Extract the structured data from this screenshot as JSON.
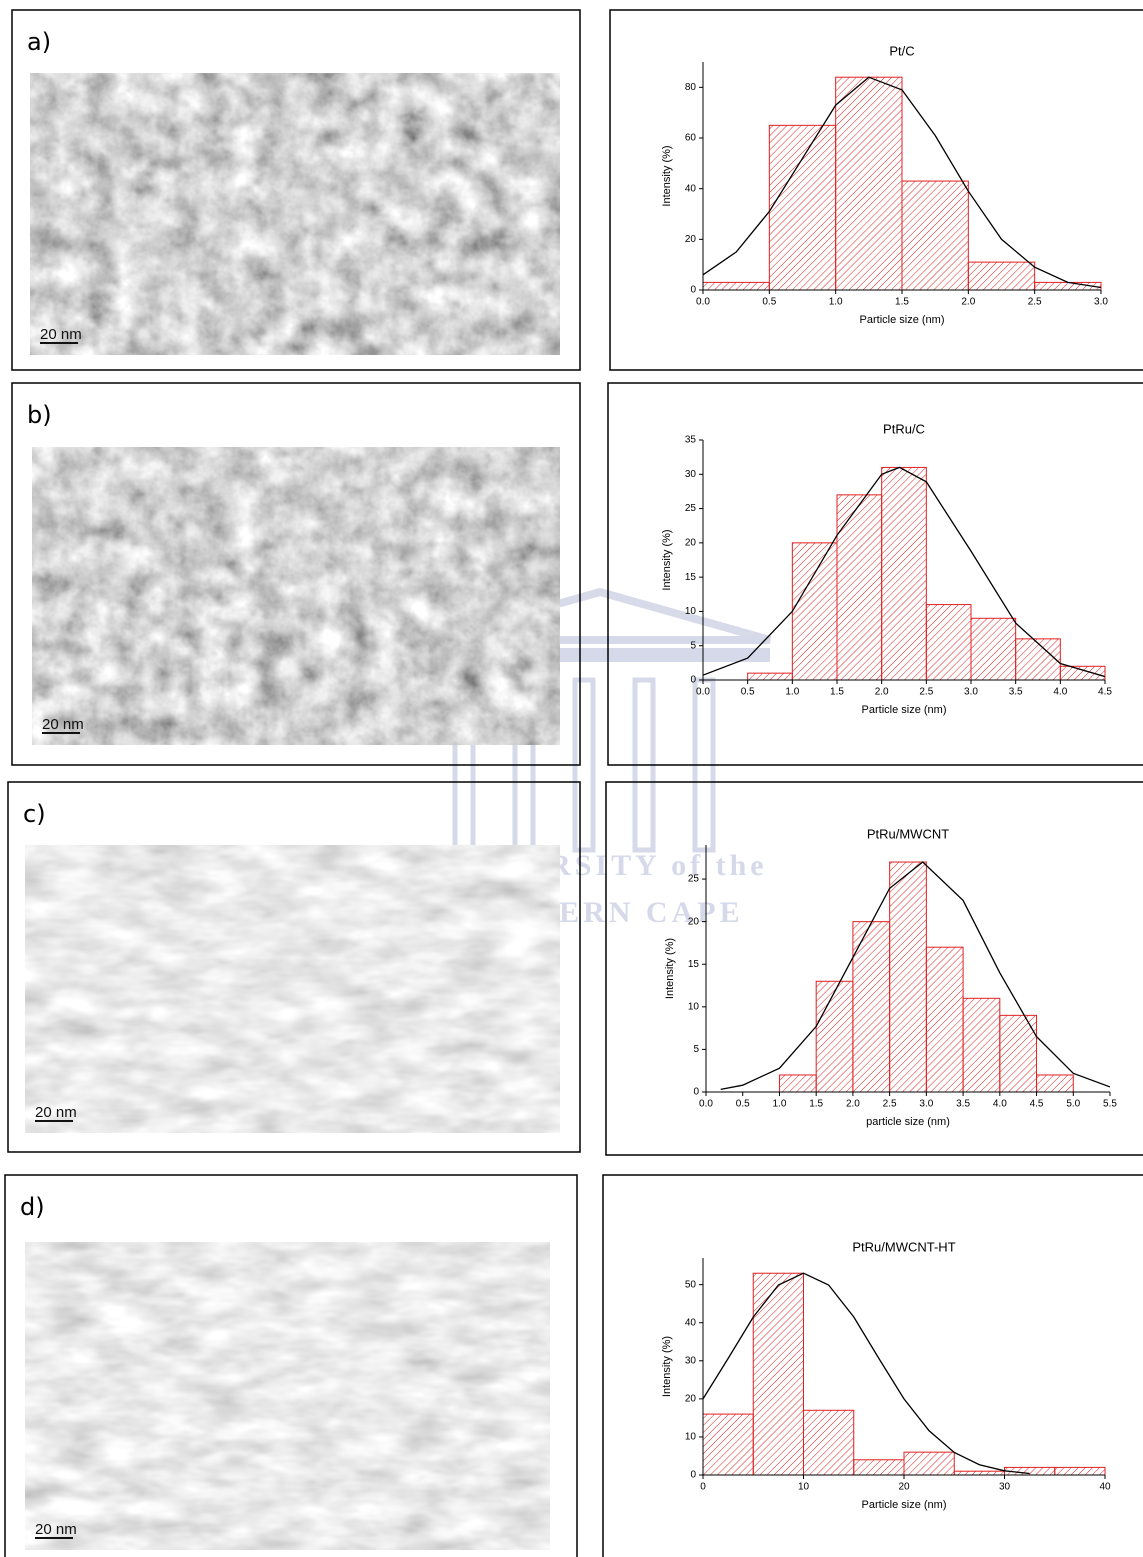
{
  "panels": [
    {
      "label": "a)",
      "scale_bar": "20 nm"
    },
    {
      "label": "b)",
      "scale_bar": "20 nm"
    },
    {
      "label": "c)",
      "scale_bar": "20 nm"
    },
    {
      "label": "d)",
      "scale_bar": "20 nm"
    }
  ],
  "watermark": {
    "line1": "UNIVERSITY of the",
    "line2": "WESTERN CAPE"
  },
  "chart_data": [
    {
      "type": "histogram",
      "title": "Pt/C",
      "xlabel": "Particle size (nm)",
      "ylabel": "Intensity (%)",
      "bins": [
        0,
        0.5,
        1,
        1.5,
        2,
        2.5,
        3
      ],
      "values": [
        3,
        65,
        84,
        43,
        11,
        3
      ],
      "color": "#e02020",
      "xlim": [
        0,
        3
      ],
      "ylim": [
        0,
        90
      ],
      "xticks": [
        {
          "value": 0,
          "label": "0.0"
        },
        0.5,
        {
          "value": 1,
          "label": "1.0"
        },
        1.5,
        {
          "value": 2,
          "label": "2.0"
        },
        2.5,
        {
          "value": 3,
          "label": "3.0"
        }
      ],
      "yticks": [
        0,
        20,
        40,
        60,
        80
      ],
      "fit": {
        "color": "#000000",
        "x": [
          0,
          0.25,
          0.5,
          0.75,
          1,
          1.25,
          1.5,
          1.75,
          2,
          2.25,
          2.5,
          2.75,
          3
        ],
        "values": [
          6,
          15,
          31,
          52,
          73,
          84,
          79,
          61,
          39,
          20,
          9,
          3,
          1
        ]
      }
    },
    {
      "type": "histogram",
      "title": "PtRu/C",
      "xlabel": "Particle size (nm)",
      "ylabel": "Intensity (%)",
      "bins": [
        0,
        0.5,
        1,
        1.5,
        2,
        2.5,
        3,
        3.5,
        4,
        4.5
      ],
      "values": [
        0,
        1,
        20,
        27,
        31,
        11,
        9,
        6,
        2
      ],
      "color": "#e02020",
      "xlim": [
        0,
        4.5
      ],
      "ylim": [
        0,
        35
      ],
      "xticks": [
        {
          "value": 0,
          "label": "0.0"
        },
        0.5,
        {
          "value": 1,
          "label": "1.0"
        },
        1.5,
        {
          "value": 2,
          "label": "2.0"
        },
        2.5,
        {
          "value": 3,
          "label": "3.0"
        },
        3.5,
        {
          "value": 4,
          "label": "4.0"
        },
        4.5
      ],
      "yticks": [
        0,
        5,
        10,
        15,
        20,
        25,
        30,
        35
      ],
      "fit": {
        "color": "#000000",
        "x": [
          0,
          0.5,
          1,
          1.5,
          2,
          2.2,
          2.5,
          3,
          3.5,
          4,
          4.5
        ],
        "values": [
          0.7,
          3.2,
          10,
          21.1,
          30,
          31,
          28.9,
          18.8,
          8.3,
          2.4,
          0.5
        ]
      }
    },
    {
      "type": "histogram",
      "title": "PtRu/MWCNT",
      "xlabel": "particle size (nm)",
      "ylabel": "Intensity (%)",
      "bins": [
        1,
        1.5,
        2,
        2.5,
        3,
        3.5,
        4,
        4.5,
        5
      ],
      "values": [
        2,
        13,
        20,
        27,
        17,
        11,
        9,
        2
      ],
      "color": "#e02020",
      "xlim": [
        0,
        5.5
      ],
      "ylim": [
        0,
        29
      ],
      "xticks": [
        {
          "value": 0,
          "label": "0.0"
        },
        0.5,
        {
          "value": 1,
          "label": "1.0"
        },
        1.5,
        {
          "value": 2,
          "label": "2.0"
        },
        2.5,
        {
          "value": 3,
          "label": "3.0"
        },
        3.5,
        {
          "value": 4,
          "label": "4.0"
        },
        4.5,
        {
          "value": 5,
          "label": "5.0"
        },
        5.5
      ],
      "yticks": [
        0,
        5,
        10,
        15,
        20,
        25
      ],
      "fit": {
        "color": "#000000",
        "x": [
          0.2,
          0.5,
          1,
          1.5,
          2,
          2.5,
          2.95,
          3.5,
          4,
          4.5,
          5,
          5.5
        ],
        "values": [
          0.3,
          0.8,
          2.8,
          7.7,
          15.8,
          23.9,
          27,
          22.5,
          14,
          6.5,
          2.2,
          0.6
        ]
      }
    },
    {
      "type": "histogram",
      "title": "PtRu/MWCNT-HT",
      "xlabel": "Particle size (nm)",
      "ylabel": "Intensity (%)",
      "bins": [
        0,
        5,
        10,
        15,
        20,
        25,
        30,
        35,
        40
      ],
      "values": [
        16,
        53,
        17,
        4,
        6,
        1,
        2,
        2
      ],
      "color": "#e02020",
      "xlim": [
        0,
        40
      ],
      "ylim": [
        0,
        57
      ],
      "xticks": [
        0,
        10,
        20,
        30,
        40
      ],
      "yticks": [
        0,
        10,
        20,
        30,
        40,
        50
      ],
      "fit": {
        "color": "#000000",
        "x": [
          0,
          2.5,
          5,
          7.5,
          10,
          12.5,
          15,
          17.5,
          20,
          22.5,
          25,
          27.5,
          30,
          32.5
        ],
        "values": [
          20,
          30.6,
          41.5,
          49.9,
          53,
          49.9,
          41.5,
          30.6,
          20,
          11.6,
          5.9,
          2.7,
          1.1,
          0.4
        ]
      }
    }
  ]
}
